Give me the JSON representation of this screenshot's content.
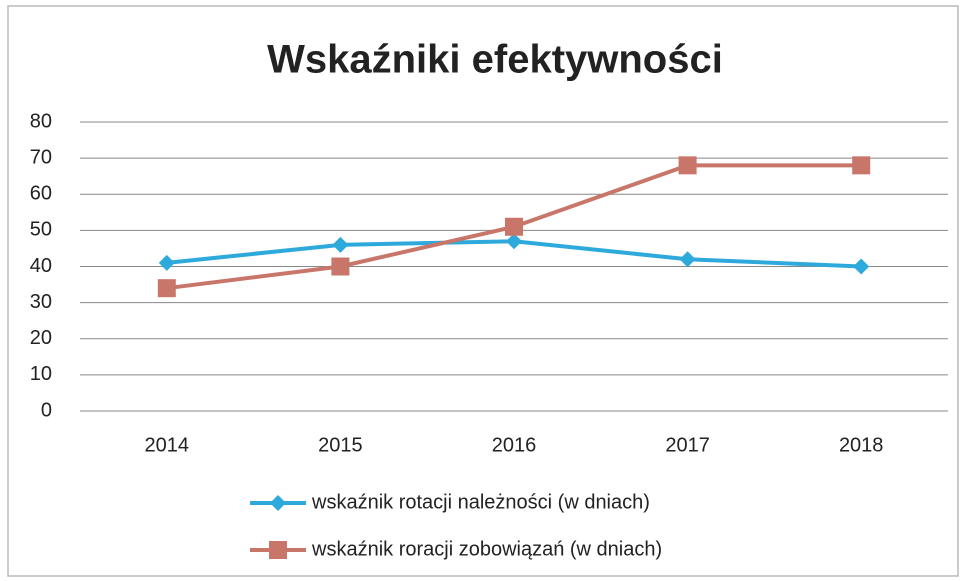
{
  "chart_data": {
    "type": "line",
    "title": "Wskaźniki efektywności",
    "categories": [
      "2014",
      "2015",
      "2016",
      "2017",
      "2018"
    ],
    "series": [
      {
        "name": "wskaźnik rotacji należności (w dniach)",
        "color": "#2ea9dc",
        "marker": "diamond",
        "values": [
          41,
          46,
          47,
          42,
          40
        ]
      },
      {
        "name": "wskaźnik roracji zobowiązań (w dniach)",
        "color": "#c9766a",
        "marker": "square",
        "values": [
          34,
          40,
          51,
          68,
          68
        ]
      }
    ],
    "ylim": [
      0,
      80
    ],
    "yticks": [
      0,
      10,
      20,
      30,
      40,
      50,
      60,
      70,
      80
    ],
    "grid": true,
    "legend": "bottom"
  }
}
